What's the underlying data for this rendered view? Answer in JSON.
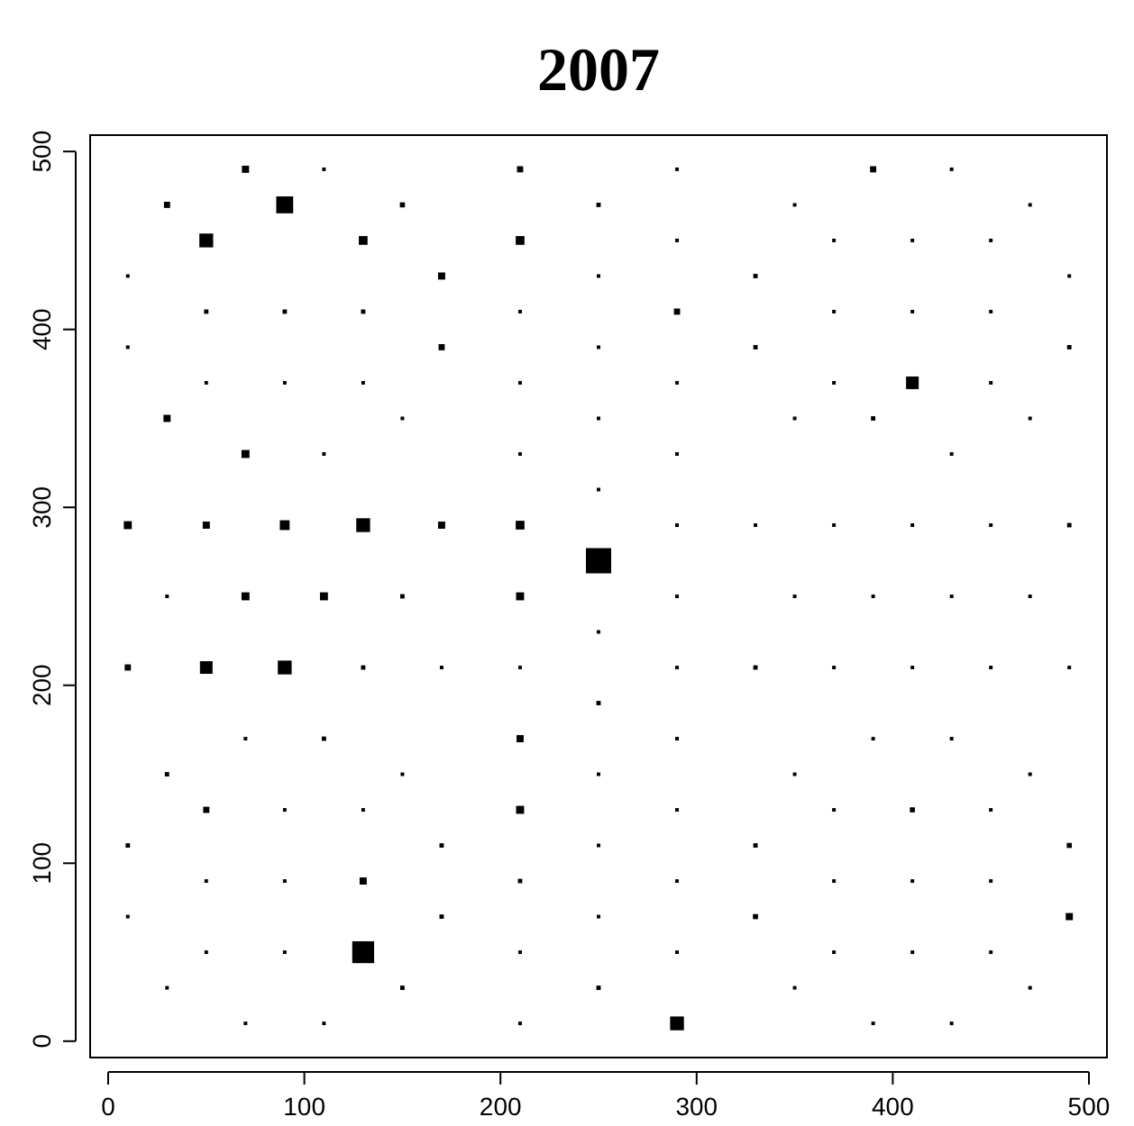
{
  "chart_data": {
    "type": "bubble",
    "title": "2007",
    "marker": "square",
    "xlim": [
      -9.2,
      509.2
    ],
    "ylim": [
      -9.2,
      509.2
    ],
    "xticks": [
      0,
      100,
      200,
      300,
      400,
      500
    ],
    "yticks": [
      0,
      100,
      200,
      300,
      400,
      500
    ],
    "grid": false,
    "series": [
      {
        "color": "#000000",
        "x": [
          70,
          110,
          210,
          290,
          390,
          430,
          30,
          90,
          150,
          250,
          350,
          470,
          50,
          130,
          210,
          290,
          370,
          410,
          450,
          10,
          170,
          250,
          330,
          490,
          50,
          90,
          130,
          210,
          290,
          370,
          410,
          450,
          10,
          170,
          250,
          330,
          490,
          50,
          90,
          130,
          210,
          290,
          370,
          410,
          450,
          30,
          150,
          250,
          350,
          390,
          470,
          70,
          110,
          210,
          290,
          430,
          250,
          10,
          50,
          90,
          130,
          170,
          210,
          290,
          330,
          370,
          410,
          450,
          490,
          250,
          30,
          70,
          110,
          150,
          210,
          290,
          350,
          390,
          430,
          470,
          250,
          10,
          50,
          90,
          130,
          170,
          210,
          290,
          330,
          370,
          410,
          450,
          490,
          250,
          70,
          110,
          210,
          290,
          390,
          430,
          30,
          150,
          250,
          350,
          470,
          50,
          90,
          130,
          210,
          290,
          370,
          410,
          450,
          10,
          170,
          250,
          330,
          490,
          50,
          90,
          130,
          210,
          290,
          370,
          410,
          450,
          10,
          170,
          250,
          330,
          490,
          50,
          90,
          130,
          210,
          290,
          370,
          410,
          450,
          30,
          150,
          250,
          350,
          470,
          70,
          110,
          210,
          290,
          390,
          430
        ],
        "values": [
          490,
          490,
          490,
          490,
          490,
          490,
          470,
          470,
          470,
          470,
          470,
          470,
          450,
          450,
          450,
          450,
          450,
          450,
          450,
          430,
          430,
          430,
          430,
          430,
          410,
          410,
          410,
          410,
          410,
          410,
          410,
          410,
          390,
          390,
          390,
          390,
          390,
          370,
          370,
          370,
          370,
          370,
          370,
          370,
          370,
          350,
          350,
          350,
          350,
          350,
          350,
          330,
          330,
          330,
          330,
          330,
          310,
          290,
          290,
          290,
          290,
          290,
          290,
          290,
          290,
          290,
          290,
          290,
          290,
          270,
          250,
          250,
          250,
          250,
          250,
          250,
          250,
          250,
          250,
          250,
          230,
          210,
          210,
          210,
          210,
          210,
          210,
          210,
          210,
          210,
          210,
          210,
          210,
          190,
          170,
          170,
          170,
          170,
          170,
          170,
          150,
          150,
          150,
          150,
          150,
          130,
          130,
          130,
          130,
          130,
          130,
          130,
          130,
          110,
          110,
          110,
          110,
          110,
          90,
          90,
          90,
          90,
          90,
          90,
          90,
          90,
          70,
          70,
          70,
          70,
          70,
          50,
          50,
          50,
          50,
          50,
          50,
          50,
          50,
          30,
          30,
          30,
          30,
          30,
          10,
          10,
          10,
          10,
          10,
          10
        ],
        "sizes": [
          0.08,
          0.02,
          0.06,
          0.02,
          0.06,
          0.02,
          0.06,
          0.45,
          0.04,
          0.03,
          0.02,
          0.02,
          0.3,
          0.12,
          0.12,
          0.02,
          0.02,
          0.02,
          0.02,
          0.02,
          0.08,
          0.02,
          0.03,
          0.02,
          0.03,
          0.03,
          0.03,
          0.02,
          0.06,
          0.02,
          0.02,
          0.02,
          0.02,
          0.06,
          0.02,
          0.03,
          0.03,
          0.02,
          0.02,
          0.02,
          0.02,
          0.02,
          0.02,
          0.25,
          0.02,
          0.08,
          0.02,
          0.02,
          0.02,
          0.03,
          0.02,
          0.1,
          0.02,
          0.02,
          0.02,
          0.02,
          0.02,
          0.1,
          0.08,
          0.15,
          0.3,
          0.08,
          0.12,
          0.02,
          0.02,
          0.02,
          0.02,
          0.02,
          0.03,
          1,
          0.02,
          0.1,
          0.1,
          0.03,
          0.1,
          0.02,
          0.02,
          0.02,
          0.02,
          0.02,
          0.02,
          0.06,
          0.25,
          0.3,
          0.03,
          0.02,
          0.02,
          0.02,
          0.03,
          0.02,
          0.02,
          0.02,
          0.02,
          0.03,
          0.02,
          0.03,
          0.08,
          0.02,
          0.02,
          0.02,
          0.03,
          0.02,
          0.02,
          0.02,
          0.02,
          0.06,
          0.02,
          0.02,
          0.1,
          0.02,
          0.02,
          0.04,
          0.02,
          0.03,
          0.03,
          0.02,
          0.03,
          0.04,
          0.02,
          0.02,
          0.08,
          0.03,
          0.02,
          0.02,
          0.02,
          0.02,
          0.02,
          0.03,
          0.02,
          0.04,
          0.08,
          0.02,
          0.02,
          0.75,
          0.02,
          0.02,
          0.02,
          0.02,
          0.02,
          0.02,
          0.03,
          0.03,
          0.02,
          0.02,
          0.02,
          0.02,
          0.02,
          0.3,
          0.02,
          0.02
        ]
      }
    ]
  }
}
